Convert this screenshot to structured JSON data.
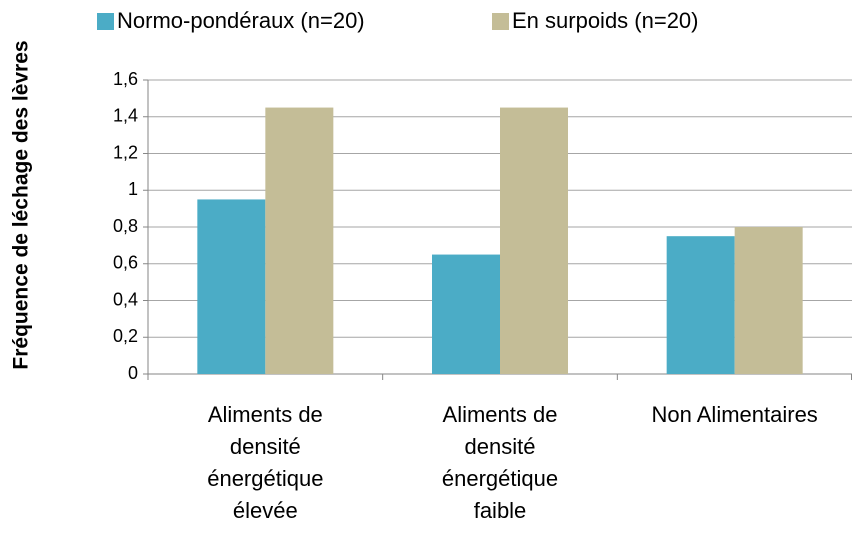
{
  "chart_data": {
    "type": "bar",
    "y_label": "Fréquence de léchage des lèvres",
    "categories": [
      "Aliments de\ndensité\nénergétique\nélevée",
      "Aliments de\ndensité\nénergétique\nfaible",
      "Non Alimentaires"
    ],
    "series": [
      {
        "name": "Normo-pondéraux (n=20)",
        "color": "#4bacc6",
        "values": [
          0.95,
          0.65,
          0.75
        ]
      },
      {
        "name": "En surpoids (n=20)",
        "color": "#c4bd97",
        "values": [
          1.45,
          1.45,
          0.8
        ]
      }
    ],
    "ylim": [
      0,
      1.6
    ],
    "yticks": [
      0,
      {
        "value": 0.2,
        "label": "0,2"
      },
      {
        "value": 0.4,
        "label": "0,4"
      },
      {
        "value": 0.6,
        "label": "0,6"
      },
      {
        "value": 0.8,
        "label": "0,8"
      },
      1,
      {
        "value": 1.2,
        "label": "1,2"
      },
      {
        "value": 1.4,
        "label": "1,4"
      },
      {
        "value": 1.6,
        "label": "1,6"
      }
    ],
    "grid": true,
    "legend": "top"
  }
}
